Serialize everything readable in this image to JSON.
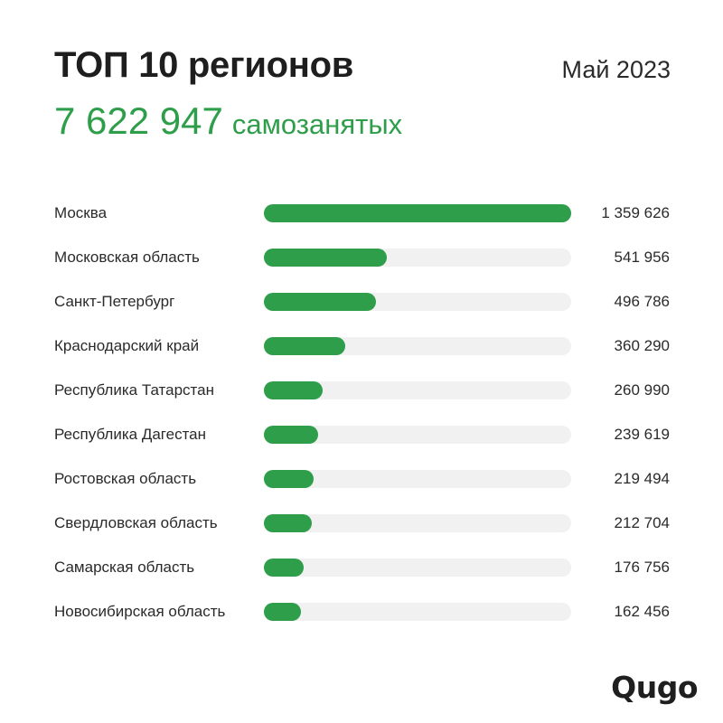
{
  "header": {
    "title": "ТОП 10 регионов",
    "date": "Май 2023",
    "total_value": "7 622 947",
    "total_unit": "самозанятых"
  },
  "colors": {
    "accent": "#2e9e4a",
    "track": "#f1f1f1",
    "text": "#2a2a2a"
  },
  "chart_data": {
    "type": "bar",
    "orientation": "horizontal",
    "categories": [
      "Москва",
      "Московская область",
      "Санкт-Петербург",
      "Краснодарский край",
      "Республика Татарстан",
      "Республика Дагестан",
      "Ростовская область",
      "Свердловская область",
      "Самарская область",
      "Новосибирская область"
    ],
    "values": [
      1359626,
      541956,
      496786,
      360290,
      260990,
      239619,
      219494,
      212704,
      176756,
      162456
    ],
    "value_labels": [
      "1 359 626",
      "541 956",
      "496 786",
      "360 290",
      "260 990",
      "239 619",
      "219 494",
      "212 704",
      "176 756",
      "162 456"
    ],
    "xlim": [
      0,
      1359626
    ],
    "grid": false,
    "legend": false
  },
  "logo": {
    "text": "Qugo"
  }
}
